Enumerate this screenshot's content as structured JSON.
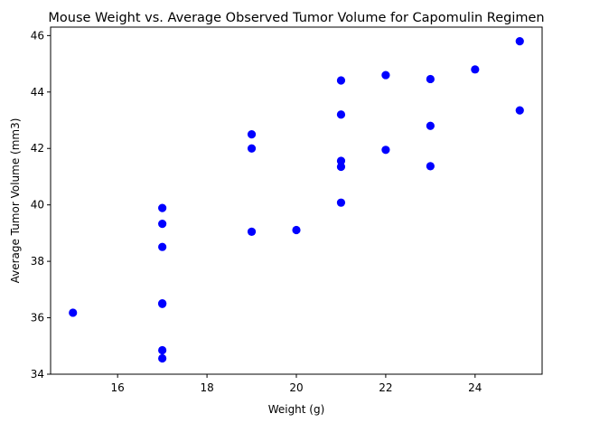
{
  "chart_data": {
    "type": "scatter",
    "title": "Mouse Weight vs. Average Observed Tumor Volume for Capomulin Regimen",
    "xlabel": "Weight (g)",
    "ylabel": "Average Tumor Volume (mm3)",
    "xlim": [
      14.5,
      25.5
    ],
    "ylim": [
      34,
      46.3
    ],
    "xticks": [
      16,
      18,
      20,
      22,
      24
    ],
    "yticks": [
      34,
      36,
      38,
      40,
      42,
      44,
      46
    ],
    "marker_color": "#0000ff",
    "grid": false,
    "points": [
      {
        "x": 15,
        "y": 36.18
      },
      {
        "x": 17,
        "y": 34.85
      },
      {
        "x": 17,
        "y": 34.56
      },
      {
        "x": 17,
        "y": 36.51
      },
      {
        "x": 17,
        "y": 36.49
      },
      {
        "x": 17,
        "y": 38.51
      },
      {
        "x": 17,
        "y": 39.33
      },
      {
        "x": 17,
        "y": 39.89
      },
      {
        "x": 19,
        "y": 39.05
      },
      {
        "x": 19,
        "y": 42.0
      },
      {
        "x": 19,
        "y": 42.5
      },
      {
        "x": 20,
        "y": 39.11
      },
      {
        "x": 21,
        "y": 40.08
      },
      {
        "x": 21,
        "y": 41.35
      },
      {
        "x": 21,
        "y": 41.56
      },
      {
        "x": 21,
        "y": 43.2
      },
      {
        "x": 21,
        "y": 44.41
      },
      {
        "x": 22,
        "y": 41.95
      },
      {
        "x": 22,
        "y": 44.6
      },
      {
        "x": 23,
        "y": 41.37
      },
      {
        "x": 23,
        "y": 42.8
      },
      {
        "x": 23,
        "y": 44.46
      },
      {
        "x": 24,
        "y": 44.8
      },
      {
        "x": 25,
        "y": 43.35
      },
      {
        "x": 25,
        "y": 45.8
      }
    ]
  }
}
